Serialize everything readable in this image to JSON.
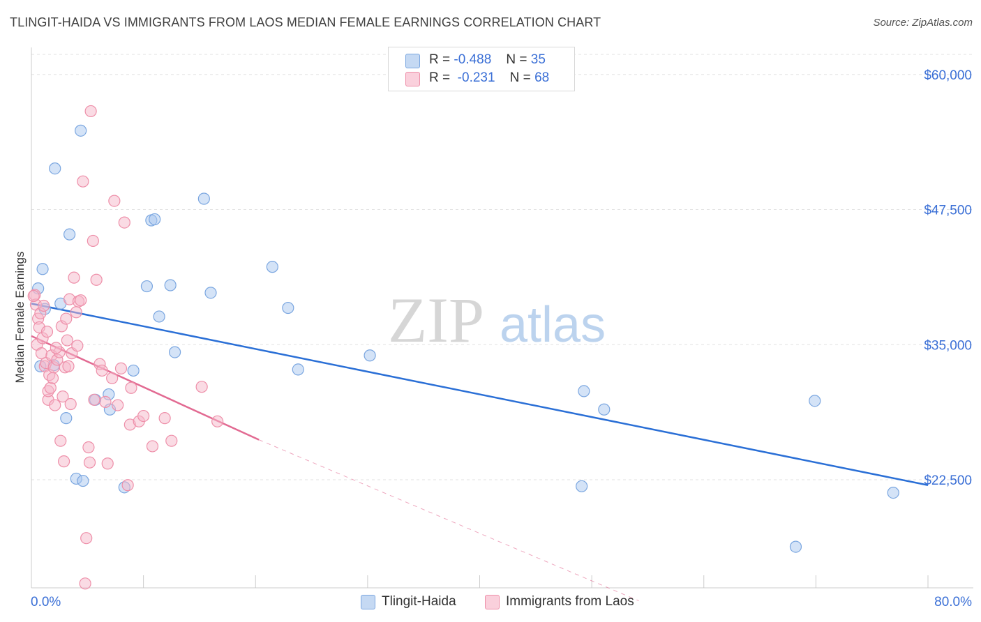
{
  "title": "TLINGIT-HAIDA VS IMMIGRANTS FROM LAOS MEDIAN FEMALE EARNINGS CORRELATION CHART",
  "source": "Source: ZipAtlas.com",
  "watermark": {
    "zip": "ZIP",
    "atlas": "atlas"
  },
  "legend": {
    "r_label": "R =",
    "n_label": "N =",
    "series": [
      {
        "name": "Tlingit-Haida",
        "r": "-0.488",
        "n": "35",
        "color": "#a9c7ef",
        "stroke": "#7aa6e0"
      },
      {
        "name": "Immigrants from Laos",
        "r": "-0.231",
        "n": "68",
        "color": "#f6b8c9",
        "stroke": "#ee8fa9"
      }
    ]
  },
  "chart_data": {
    "type": "scatter",
    "title": "TLINGIT-HAIDA VS IMMIGRANTS FROM LAOS MEDIAN FEMALE EARNINGS CORRELATION CHART",
    "xlabel": "",
    "ylabel": "Median Female Earnings",
    "xlim": [
      0,
      80
    ],
    "ylim": [
      12500,
      62500
    ],
    "x_tick_labels": [
      "0.0%",
      "80.0%"
    ],
    "y_ticks": [
      60000,
      47500,
      35000,
      22500
    ],
    "y_tick_labels": [
      "$60,000",
      "$47,500",
      "$35,000",
      "$22,500"
    ],
    "series": [
      {
        "name": "Tlingit-Haida",
        "color": "#a9c7ef",
        "stroke": "#7aa6e0",
        "trend": {
          "x0": 0,
          "y0": 38800,
          "x1": 80,
          "y1": 22000,
          "color": "#2a6fd6"
        },
        "points": [
          [
            0.6,
            40200
          ],
          [
            1.2,
            38300
          ],
          [
            1.0,
            42000
          ],
          [
            2.6,
            38800
          ],
          [
            4.4,
            54800
          ],
          [
            2.1,
            51300
          ],
          [
            3.4,
            45200
          ],
          [
            3.1,
            28200
          ],
          [
            4.0,
            22600
          ],
          [
            4.6,
            22400
          ],
          [
            5.7,
            29900
          ],
          [
            6.9,
            30400
          ],
          [
            7.0,
            29000
          ],
          [
            8.3,
            21800
          ],
          [
            9.1,
            32600
          ],
          [
            10.3,
            40400
          ],
          [
            10.7,
            46500
          ],
          [
            11.0,
            46600
          ],
          [
            11.4,
            37600
          ],
          [
            12.4,
            40500
          ],
          [
            12.8,
            34300
          ],
          [
            15.4,
            48500
          ],
          [
            16.0,
            39800
          ],
          [
            21.5,
            42200
          ],
          [
            22.9,
            38400
          ],
          [
            23.8,
            32700
          ],
          [
            30.2,
            34000
          ],
          [
            49.1,
            21900
          ],
          [
            49.3,
            30700
          ],
          [
            51.1,
            29000
          ],
          [
            68.2,
            16300
          ],
          [
            69.9,
            29800
          ],
          [
            76.9,
            21300
          ],
          [
            0.8,
            33000
          ],
          [
            2.0,
            33100
          ]
        ]
      },
      {
        "name": "Immigrants from Laos",
        "color": "#f6b8c9",
        "stroke": "#ee8fa9",
        "trend": {
          "x0": 0,
          "y0": 35800,
          "x1": 20.3,
          "y1": 26200,
          "color": "#e26a92",
          "dash_x1": 54.2,
          "dash_y1": 11300
        },
        "points": [
          [
            0.3,
            39600
          ],
          [
            0.4,
            38700
          ],
          [
            0.6,
            37400
          ],
          [
            0.5,
            35000
          ],
          [
            0.7,
            36600
          ],
          [
            0.9,
            34200
          ],
          [
            1.0,
            35600
          ],
          [
            1.2,
            33000
          ],
          [
            1.3,
            33300
          ],
          [
            1.5,
            29900
          ],
          [
            1.5,
            30700
          ],
          [
            1.6,
            32200
          ],
          [
            1.7,
            31000
          ],
          [
            1.8,
            34000
          ],
          [
            2.0,
            32900
          ],
          [
            2.1,
            29400
          ],
          [
            2.3,
            33600
          ],
          [
            2.5,
            34300
          ],
          [
            2.6,
            26100
          ],
          [
            2.7,
            36700
          ],
          [
            2.8,
            30200
          ],
          [
            2.9,
            24200
          ],
          [
            3.0,
            32900
          ],
          [
            3.1,
            37400
          ],
          [
            3.2,
            35400
          ],
          [
            3.4,
            39200
          ],
          [
            3.5,
            29500
          ],
          [
            3.6,
            34200
          ],
          [
            3.8,
            41200
          ],
          [
            4.0,
            38000
          ],
          [
            4.2,
            39000
          ],
          [
            4.4,
            39100
          ],
          [
            4.6,
            50100
          ],
          [
            4.8,
            12900
          ],
          [
            4.9,
            17100
          ],
          [
            5.1,
            25500
          ],
          [
            5.2,
            24100
          ],
          [
            5.3,
            56600
          ],
          [
            5.5,
            44600
          ],
          [
            5.8,
            41000
          ],
          [
            6.1,
            33200
          ],
          [
            6.3,
            32600
          ],
          [
            6.6,
            29700
          ],
          [
            6.8,
            24000
          ],
          [
            7.2,
            31900
          ],
          [
            7.4,
            48300
          ],
          [
            8.0,
            32800
          ],
          [
            8.3,
            46300
          ],
          [
            8.6,
            22000
          ],
          [
            8.8,
            27600
          ],
          [
            8.9,
            31000
          ],
          [
            9.6,
            27900
          ],
          [
            10.0,
            28400
          ],
          [
            10.8,
            25600
          ],
          [
            11.9,
            28200
          ],
          [
            15.2,
            31100
          ],
          [
            16.6,
            27900
          ],
          [
            0.2,
            39500
          ],
          [
            0.8,
            37900
          ],
          [
            1.1,
            38600
          ],
          [
            1.4,
            36200
          ],
          [
            1.9,
            31900
          ],
          [
            2.2,
            34700
          ],
          [
            3.3,
            33000
          ],
          [
            4.1,
            34900
          ],
          [
            5.6,
            29900
          ],
          [
            7.7,
            29400
          ],
          [
            12.5,
            26100
          ]
        ]
      }
    ]
  }
}
